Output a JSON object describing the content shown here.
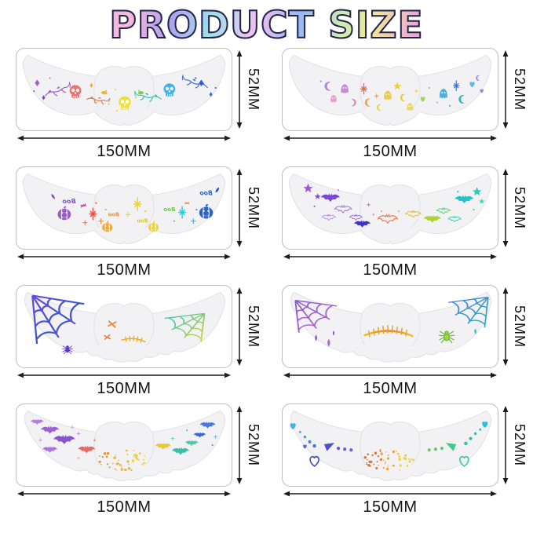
{
  "title": "PRODUCT SIZE",
  "dimensions": {
    "width": "150MM",
    "height": "52MM"
  },
  "panels": [
    {
      "name": "rainbow-skulls-vines",
      "motifs": "skull-icon, vine-icon, diamond-icon",
      "height_label": "52MM",
      "width_label": "150MM"
    },
    {
      "name": "ghosts-moons-stars",
      "motifs": "ghost-icon, moon-icon, star-icon, heart-icon",
      "height_label": "52MM",
      "width_label": "150MM"
    },
    {
      "name": "pumpkins-boo",
      "motifs": "pumpkin-icon, sparkle-icon, mirrored-boo-text",
      "height_label": "52MM",
      "width_label": "150MM",
      "decor_text": "Boo"
    },
    {
      "name": "bats-and-stars",
      "motifs": "bat-icon, star-icon",
      "height_label": "52MM",
      "width_label": "150MM"
    },
    {
      "name": "spiderwebs-stitches",
      "motifs": "web-icon, spider-icon, x-stitch-icon, scar-icon",
      "height_label": "52MM",
      "width_label": "150MM"
    },
    {
      "name": "webs-scar-spider",
      "motifs": "web-icon, drip-icon, scar-icon, spider-icon",
      "height_label": "52MM",
      "width_label": "150MM"
    },
    {
      "name": "bats-freckles",
      "motifs": "bat-icon, freckle-dots",
      "height_label": "52MM",
      "width_label": "150MM"
    },
    {
      "name": "hearts-dot-swirls",
      "motifs": "heart-icon, dot-trail, triangle-icon, freckle-dots",
      "height_label": "52MM",
      "width_label": "150MM"
    }
  ],
  "colors": {
    "card_border": "#bdbdbd",
    "sheet_fill": "#f2f2f4",
    "dimension_ink": "#1c1c1c",
    "title_outline": "#23234b"
  }
}
